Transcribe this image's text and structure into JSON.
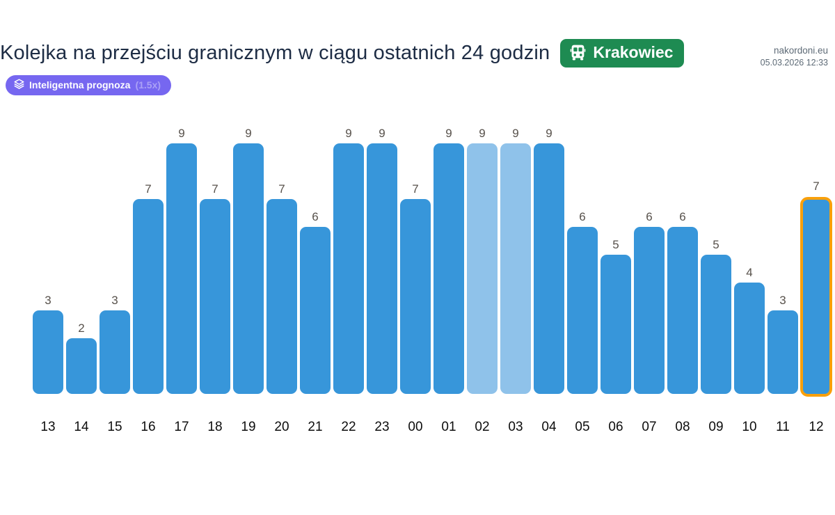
{
  "site": {
    "name": "nakordoni.eu",
    "timestamp": "05.03.2026 12:33"
  },
  "header": {
    "title": "Kolejka na przejściu granicznym w ciągu ostatnich 24 godzin",
    "crossing_badge": {
      "label": "Krakowiec",
      "icon": "bus-icon",
      "color": "#1e8b52"
    },
    "forecast_badge": {
      "label": "Inteligentna prognoza",
      "multiplier": "(1.5x)",
      "icon": "layers-icon",
      "color": "#7667f0"
    }
  },
  "chart_data": {
    "type": "bar",
    "title": "Kolejka na przejściu granicznym w ciągu ostatnich 24 godzin",
    "xlabel": "",
    "ylabel": "",
    "ylim": [
      0,
      9
    ],
    "grid": false,
    "legend": false,
    "categories": [
      "13",
      "14",
      "15",
      "16",
      "17",
      "18",
      "19",
      "20",
      "21",
      "22",
      "23",
      "00",
      "01",
      "02",
      "03",
      "04",
      "05",
      "06",
      "07",
      "08",
      "09",
      "10",
      "11",
      "12"
    ],
    "values": [
      3,
      2,
      3,
      7,
      9,
      7,
      9,
      7,
      6,
      9,
      9,
      7,
      9,
      9,
      9,
      9,
      6,
      5,
      6,
      6,
      5,
      4,
      3,
      7
    ],
    "forecast_categories": [
      "02",
      "03"
    ],
    "highlight_category": "12",
    "colors": {
      "bar": "#3796da",
      "forecast_bar": "#8fc2ea",
      "highlight_border": "#f9a00b",
      "value_label": "#57514b",
      "axis_label": "#0d0d0d"
    }
  }
}
